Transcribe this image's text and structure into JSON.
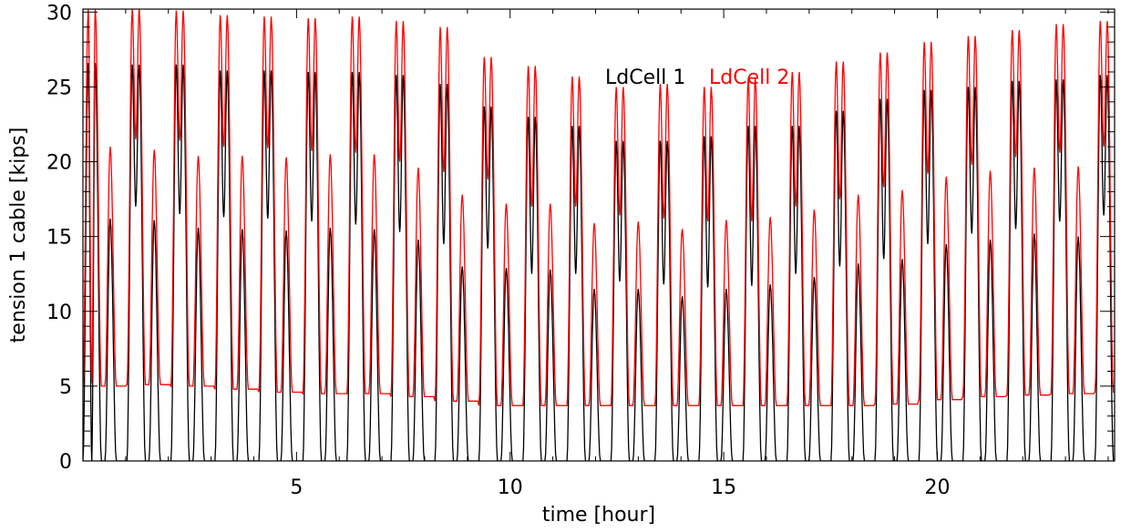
{
  "chart_data": {
    "type": "line",
    "xlabel": "time [hour]",
    "ylabel": "tension 1 cable [kips]",
    "xlim": [
      0,
      24.15
    ],
    "ylim": [
      0,
      30.2
    ],
    "xticks": [
      {
        "value": 5,
        "label": "5"
      },
      {
        "value": 10,
        "label": "10"
      },
      {
        "value": 15,
        "label": "15"
      },
      {
        "value": 20,
        "label": "20"
      }
    ],
    "yticks": [
      {
        "value": 0,
        "label": "0"
      },
      {
        "value": 5,
        "label": "5"
      },
      {
        "value": 10,
        "label": "10"
      },
      {
        "value": 15,
        "label": "15"
      },
      {
        "value": 20,
        "label": "20"
      },
      {
        "value": 25,
        "label": "25"
      },
      {
        "value": 30,
        "label": "30"
      }
    ],
    "grid": false,
    "legend_position": "upper-center",
    "cycle_period_hours": 1.03,
    "series": [
      {
        "name": "LdCell 1",
        "color": "#000000",
        "cycles": [
          {
            "t": 0.0,
            "main_peak": 26.6,
            "mid_dip": 0.0,
            "sub_peak": 16.2,
            "floor": 0.0
          },
          {
            "t": 1.03,
            "main_peak": 26.5,
            "mid_dip": 17.0,
            "sub_peak": 16.1,
            "floor": 0.0
          },
          {
            "t": 2.06,
            "main_peak": 26.5,
            "mid_dip": 16.5,
            "sub_peak": 15.6,
            "floor": 0.0
          },
          {
            "t": 3.09,
            "main_peak": 26.1,
            "mid_dip": 16.3,
            "sub_peak": 15.5,
            "floor": 0.0
          },
          {
            "t": 4.12,
            "main_peak": 26.1,
            "mid_dip": 16.2,
            "sub_peak": 15.4,
            "floor": 0.0
          },
          {
            "t": 5.15,
            "main_peak": 26.0,
            "mid_dip": 16.0,
            "sub_peak": 15.6,
            "floor": 0.0
          },
          {
            "t": 6.18,
            "main_peak": 26.0,
            "mid_dip": 15.8,
            "sub_peak": 15.5,
            "floor": 0.0
          },
          {
            "t": 7.21,
            "main_peak": 25.8,
            "mid_dip": 15.3,
            "sub_peak": 14.8,
            "floor": 0.0
          },
          {
            "t": 8.24,
            "main_peak": 25.2,
            "mid_dip": 14.5,
            "sub_peak": 13.0,
            "floor": 0.0
          },
          {
            "t": 9.27,
            "main_peak": 23.7,
            "mid_dip": 14.2,
            "sub_peak": 12.9,
            "floor": 0.0
          },
          {
            "t": 10.3,
            "main_peak": 23.0,
            "mid_dip": 12.5,
            "sub_peak": 12.8,
            "floor": 0.0
          },
          {
            "t": 11.33,
            "main_peak": 22.4,
            "mid_dip": 12.5,
            "sub_peak": 11.5,
            "floor": 0.0
          },
          {
            "t": 12.36,
            "main_peak": 21.4,
            "mid_dip": 12.0,
            "sub_peak": 11.5,
            "floor": 0.0
          },
          {
            "t": 13.39,
            "main_peak": 21.4,
            "mid_dip": 11.8,
            "sub_peak": 11.0,
            "floor": 0.0
          },
          {
            "t": 14.42,
            "main_peak": 21.7,
            "mid_dip": 11.6,
            "sub_peak": 11.5,
            "floor": 0.0
          },
          {
            "t": 15.45,
            "main_peak": 22.4,
            "mid_dip": 11.7,
            "sub_peak": 11.8,
            "floor": 0.0
          },
          {
            "t": 16.48,
            "main_peak": 22.4,
            "mid_dip": 12.5,
            "sub_peak": 12.3,
            "floor": 0.0
          },
          {
            "t": 17.51,
            "main_peak": 23.4,
            "mid_dip": 13.0,
            "sub_peak": 13.2,
            "floor": 0.0
          },
          {
            "t": 18.54,
            "main_peak": 24.2,
            "mid_dip": 13.5,
            "sub_peak": 13.5,
            "floor": 0.0
          },
          {
            "t": 19.57,
            "main_peak": 24.8,
            "mid_dip": 14.5,
            "sub_peak": 14.5,
            "floor": 0.0
          },
          {
            "t": 20.6,
            "main_peak": 25.0,
            "mid_dip": 15.2,
            "sub_peak": 14.8,
            "floor": 0.0
          },
          {
            "t": 21.63,
            "main_peak": 25.4,
            "mid_dip": 15.5,
            "sub_peak": 15.2,
            "floor": 0.0
          },
          {
            "t": 22.66,
            "main_peak": 25.5,
            "mid_dip": 16.0,
            "sub_peak": 15.0,
            "floor": 0.0
          },
          {
            "t": 23.69,
            "main_peak": 25.8,
            "mid_dip": 16.4,
            "sub_peak": 15.4,
            "floor": 0.0
          }
        ]
      },
      {
        "name": "LdCell 2",
        "color": "#ff0000",
        "cycles": [
          {
            "t": 0.0,
            "main_peak": 30.2,
            "mid_dip": 5.2,
            "sub_peak": 21.0,
            "floor": 5.0
          },
          {
            "t": 1.03,
            "main_peak": 30.2,
            "mid_dip": 21.5,
            "sub_peak": 20.8,
            "floor": 5.1
          },
          {
            "t": 2.06,
            "main_peak": 30.1,
            "mid_dip": 21.4,
            "sub_peak": 20.4,
            "floor": 5.0
          },
          {
            "t": 3.09,
            "main_peak": 29.8,
            "mid_dip": 21.0,
            "sub_peak": 20.4,
            "floor": 4.8
          },
          {
            "t": 4.12,
            "main_peak": 29.7,
            "mid_dip": 20.9,
            "sub_peak": 20.3,
            "floor": 4.6
          },
          {
            "t": 5.15,
            "main_peak": 29.6,
            "mid_dip": 20.7,
            "sub_peak": 20.5,
            "floor": 4.5
          },
          {
            "t": 6.18,
            "main_peak": 29.7,
            "mid_dip": 20.6,
            "sub_peak": 20.5,
            "floor": 4.5
          },
          {
            "t": 7.21,
            "main_peak": 29.4,
            "mid_dip": 20.0,
            "sub_peak": 19.6,
            "floor": 4.3
          },
          {
            "t": 8.24,
            "main_peak": 29.0,
            "mid_dip": 19.3,
            "sub_peak": 17.8,
            "floor": 4.0
          },
          {
            "t": 9.27,
            "main_peak": 27.0,
            "mid_dip": 18.8,
            "sub_peak": 17.2,
            "floor": 3.7
          },
          {
            "t": 10.3,
            "main_peak": 26.4,
            "mid_dip": 17.0,
            "sub_peak": 17.2,
            "floor": 3.7
          },
          {
            "t": 11.33,
            "main_peak": 25.7,
            "mid_dip": 17.0,
            "sub_peak": 15.9,
            "floor": 3.7
          },
          {
            "t": 12.36,
            "main_peak": 25.0,
            "mid_dip": 16.4,
            "sub_peak": 16.0,
            "floor": 3.7
          },
          {
            "t": 13.39,
            "main_peak": 25.2,
            "mid_dip": 16.2,
            "sub_peak": 15.5,
            "floor": 3.7
          },
          {
            "t": 14.42,
            "main_peak": 25.0,
            "mid_dip": 16.0,
            "sub_peak": 16.1,
            "floor": 3.7
          },
          {
            "t": 15.45,
            "main_peak": 25.6,
            "mid_dip": 16.0,
            "sub_peak": 16.3,
            "floor": 3.7
          },
          {
            "t": 16.48,
            "main_peak": 26.0,
            "mid_dip": 17.0,
            "sub_peak": 16.8,
            "floor": 3.7
          },
          {
            "t": 17.51,
            "main_peak": 26.7,
            "mid_dip": 17.5,
            "sub_peak": 17.8,
            "floor": 3.7
          },
          {
            "t": 18.54,
            "main_peak": 27.3,
            "mid_dip": 18.3,
            "sub_peak": 18.1,
            "floor": 3.8
          },
          {
            "t": 19.57,
            "main_peak": 28.0,
            "mid_dip": 19.2,
            "sub_peak": 19.0,
            "floor": 4.1
          },
          {
            "t": 20.6,
            "main_peak": 28.4,
            "mid_dip": 19.8,
            "sub_peak": 19.4,
            "floor": 4.3
          },
          {
            "t": 21.63,
            "main_peak": 28.8,
            "mid_dip": 20.3,
            "sub_peak": 19.6,
            "floor": 4.4
          },
          {
            "t": 22.66,
            "main_peak": 29.2,
            "mid_dip": 20.6,
            "sub_peak": 19.7,
            "floor": 4.5
          },
          {
            "t": 23.69,
            "main_peak": 29.4,
            "mid_dip": 21.0,
            "sub_peak": 20.0,
            "floor": 4.6
          }
        ]
      }
    ]
  }
}
